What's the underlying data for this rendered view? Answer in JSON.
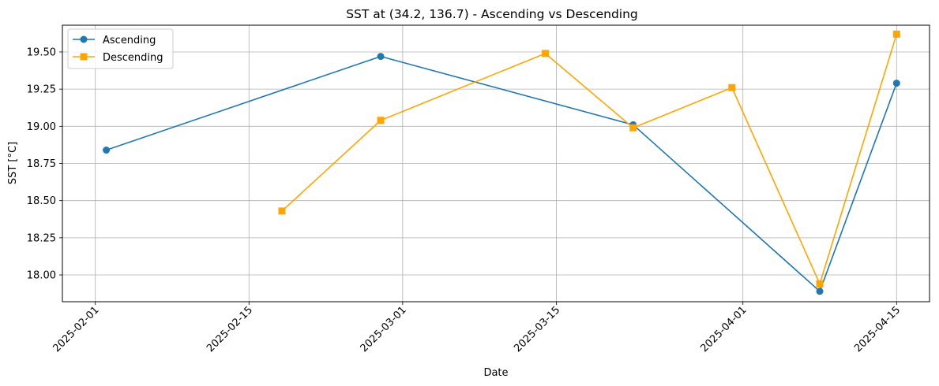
{
  "chart_data": {
    "type": "line",
    "title": "SST at (34.2, 136.7) - Ascending vs Descending",
    "xlabel": "Date",
    "ylabel": "SST [°C]",
    "xlim": [
      "2025-01-29",
      "2025-04-18"
    ],
    "ylim": [
      17.82,
      19.68
    ],
    "x_ticks": [
      "2025-02-01",
      "2025-02-15",
      "2025-03-01",
      "2025-03-15",
      "2025-04-01",
      "2025-04-15"
    ],
    "y_ticks": [
      "18.00",
      "18.25",
      "18.50",
      "18.75",
      "19.00",
      "19.25",
      "19.50"
    ],
    "grid": true,
    "legend_position": "top-left",
    "series": [
      {
        "name": "Ascending",
        "color": "#1f77b4",
        "marker": "circle",
        "x": [
          "2025-02-02",
          "2025-02-27",
          "2025-03-22",
          "2025-04-08",
          "2025-04-15"
        ],
        "y": [
          18.84,
          19.47,
          19.01,
          17.89,
          19.29
        ]
      },
      {
        "name": "Descending",
        "color": "#ffa500",
        "marker": "square",
        "x": [
          "2025-02-18",
          "2025-02-27",
          "2025-03-14",
          "2025-03-22",
          "2025-03-31",
          "2025-04-08",
          "2025-04-15"
        ],
        "y": [
          18.43,
          19.04,
          19.49,
          18.99,
          19.26,
          17.94,
          19.62
        ]
      }
    ]
  }
}
